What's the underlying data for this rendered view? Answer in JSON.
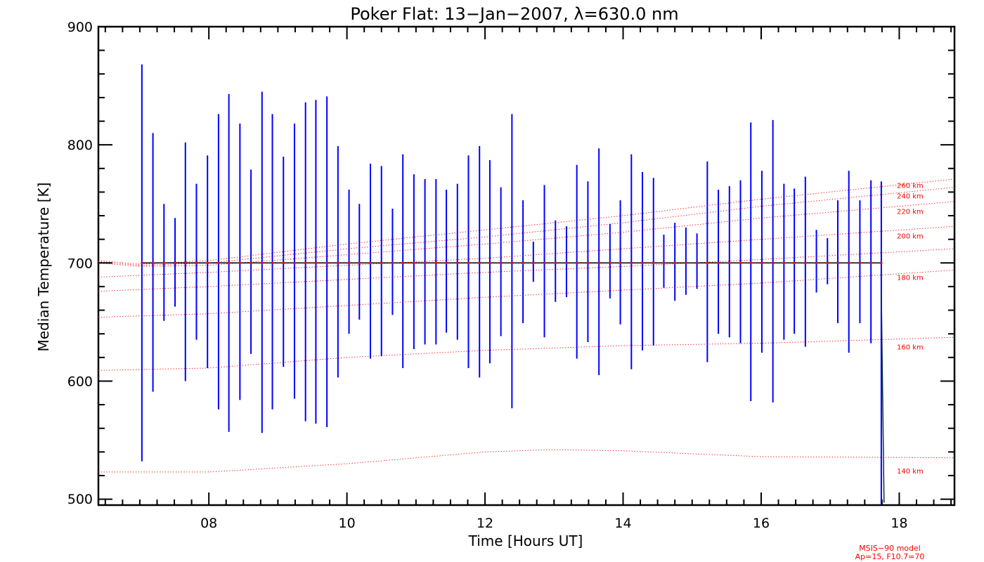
{
  "chart_data": {
    "type": "scatter",
    "title": "Poker Flat: 13−Jan−2007, λ=630.0 nm",
    "xlabel": "Time [Hours UT]",
    "ylabel": "Median Temperature [K]",
    "xlim": [
      6.4,
      18.8
    ],
    "ylim": [
      495,
      900
    ],
    "xticks": [
      8,
      10,
      12,
      14,
      16,
      18
    ],
    "xtick_labels": [
      "08",
      "10",
      "12",
      "14",
      "16",
      "18"
    ],
    "yticks": [
      500,
      600,
      700,
      800,
      900
    ],
    "ytick_labels": [
      "500",
      "600",
      "700",
      "800",
      "900"
    ],
    "grid": false,
    "median_series": {
      "color": "#ff0000",
      "error_bar_color": "#0000ff",
      "x": [
        7.03,
        7.19,
        7.35,
        7.51,
        7.66,
        7.82,
        7.98,
        8.14,
        8.29,
        8.45,
        8.61,
        8.77,
        8.92,
        9.08,
        9.24,
        9.4,
        9.55,
        9.71,
        9.87,
        10.03,
        10.18,
        10.34,
        10.5,
        10.66,
        10.81,
        10.97,
        11.13,
        11.29,
        11.44,
        11.6,
        11.76,
        11.92,
        12.07,
        12.23,
        12.39,
        12.55,
        12.7,
        12.86,
        13.02,
        13.18,
        13.33,
        13.49,
        13.65,
        13.81,
        13.96,
        14.12,
        14.28,
        14.44,
        14.59,
        14.75,
        14.91,
        15.07,
        15.22,
        15.38,
        15.54,
        15.7,
        15.85,
        16.01,
        16.17,
        16.33,
        16.48,
        16.64,
        16.8,
        16.96,
        17.11,
        17.27,
        17.43,
        17.59,
        17.74
      ],
      "y": [
        700,
        700,
        700,
        700,
        700,
        700,
        700,
        700,
        700,
        700,
        700,
        700,
        700,
        700,
        700,
        700,
        700,
        700,
        700,
        700,
        700,
        700,
        700,
        700,
        700,
        700,
        700,
        700,
        700,
        700,
        700,
        700,
        700,
        700,
        700,
        700,
        700,
        700,
        700,
        700,
        700,
        700,
        700,
        700,
        700,
        700,
        700,
        700,
        700,
        700,
        700,
        700,
        700,
        700,
        700,
        700,
        700,
        700,
        700,
        700,
        700,
        700,
        700,
        700,
        700,
        700,
        700,
        700,
        700
      ],
      "err_low": [
        532,
        591,
        651,
        663,
        600,
        635,
        611,
        576,
        557,
        584,
        623,
        556,
        576,
        612,
        585,
        566,
        564,
        561,
        603,
        640,
        652,
        619,
        621,
        656,
        611,
        627,
        631,
        631,
        641,
        635,
        611,
        603,
        615,
        638,
        577,
        649,
        684,
        637,
        667,
        671,
        619,
        633,
        605,
        670,
        648,
        610,
        626,
        630,
        679,
        668,
        673,
        678,
        616,
        640,
        637,
        632,
        583,
        624,
        582,
        635,
        640,
        629,
        675,
        682,
        649,
        624,
        649,
        632,
        0
      ],
      "err_high": [
        868,
        810,
        750,
        738,
        802,
        767,
        791,
        826,
        843,
        818,
        779,
        845,
        826,
        790,
        818,
        836,
        838,
        841,
        799,
        762,
        750,
        784,
        782,
        746,
        792,
        775,
        771,
        771,
        762,
        767,
        791,
        799,
        787,
        764,
        826,
        753,
        718,
        766,
        736,
        731,
        783,
        769,
        797,
        733,
        753,
        792,
        777,
        772,
        724,
        734,
        730,
        725,
        786,
        762,
        765,
        770,
        819,
        778,
        821,
        767,
        763,
        773,
        728,
        721,
        753,
        778,
        753,
        770,
        769
      ]
    },
    "end_line": {
      "color": "#003344",
      "x": [
        17.74,
        17.78
      ],
      "y": [
        676,
        497
      ]
    },
    "msis_curves": [
      {
        "label": "140 km",
        "color": "#ff0000",
        "x": [
          6.4,
          8.0,
          10.0,
          12.0,
          13.0,
          14.0,
          16.0,
          18.8
        ],
        "y": [
          523,
          523,
          530,
          540,
          542,
          541,
          536,
          535
        ]
      },
      {
        "label": "160 km",
        "color": "#ff0000",
        "x": [
          6.4,
          8.0,
          10.0,
          12.0,
          14.0,
          16.0,
          18.8
        ],
        "y": [
          609,
          611,
          620,
          626,
          630,
          632,
          637
        ]
      },
      {
        "label": "180 km",
        "color": "#ff0000",
        "x": [
          6.4,
          8.0,
          10.0,
          12.0,
          14.0,
          16.0,
          18.8
        ],
        "y": [
          654,
          657,
          664,
          671,
          677,
          683,
          694
        ]
      },
      {
        "label": "",
        "color": "#ff0000",
        "x": [
          6.4,
          8.0,
          10.0,
          12.0,
          14.0,
          16.0,
          18.8
        ],
        "y": [
          676,
          680,
          686,
          692,
          697,
          703,
          712
        ]
      },
      {
        "label": "200 km",
        "color": "#ff0000",
        "x": [
          6.4,
          8.0,
          10.0,
          12.0,
          14.0,
          16.0,
          18.8
        ],
        "y": [
          688,
          692,
          698,
          704,
          712,
          720,
          731
        ]
      },
      {
        "label": "220 km",
        "color": "#ff0000",
        "x": [
          6.4,
          7.0,
          8.0,
          10.0,
          12.0,
          14.0,
          16.0,
          18.8
        ],
        "y": [
          700,
          697,
          698,
          707,
          716,
          726,
          738,
          752
        ]
      },
      {
        "label": "240 km",
        "color": "#ff0000",
        "x": [
          6.4,
          7.0,
          8.0,
          10.0,
          12.0,
          14.0,
          16.0,
          18.8
        ],
        "y": [
          701,
          698,
          700,
          712,
          722,
          734,
          748,
          764
        ]
      },
      {
        "label": "260 km",
        "color": "#ff0000",
        "x": [
          6.4,
          7.0,
          8.0,
          10.0,
          12.0,
          14.0,
          16.0,
          18.8
        ],
        "y": [
          702,
          699,
          702,
          716,
          728,
          740,
          754,
          771
        ]
      }
    ],
    "alt_label_positions": [
      {
        "label": "260 km",
        "y": 766
      },
      {
        "label": "240 km",
        "y": 757
      },
      {
        "label": "220 km",
        "y": 744
      },
      {
        "label": "200 km",
        "y": 723
      },
      {
        "label": "180 km",
        "y": 688
      },
      {
        "label": "160 km",
        "y": 629
      },
      {
        "label": "140 km",
        "y": 524
      }
    ],
    "model_note": [
      "MSIS−90 model",
      "Ap=15, F10.7=70"
    ],
    "model_note_color": "#ff0000"
  }
}
